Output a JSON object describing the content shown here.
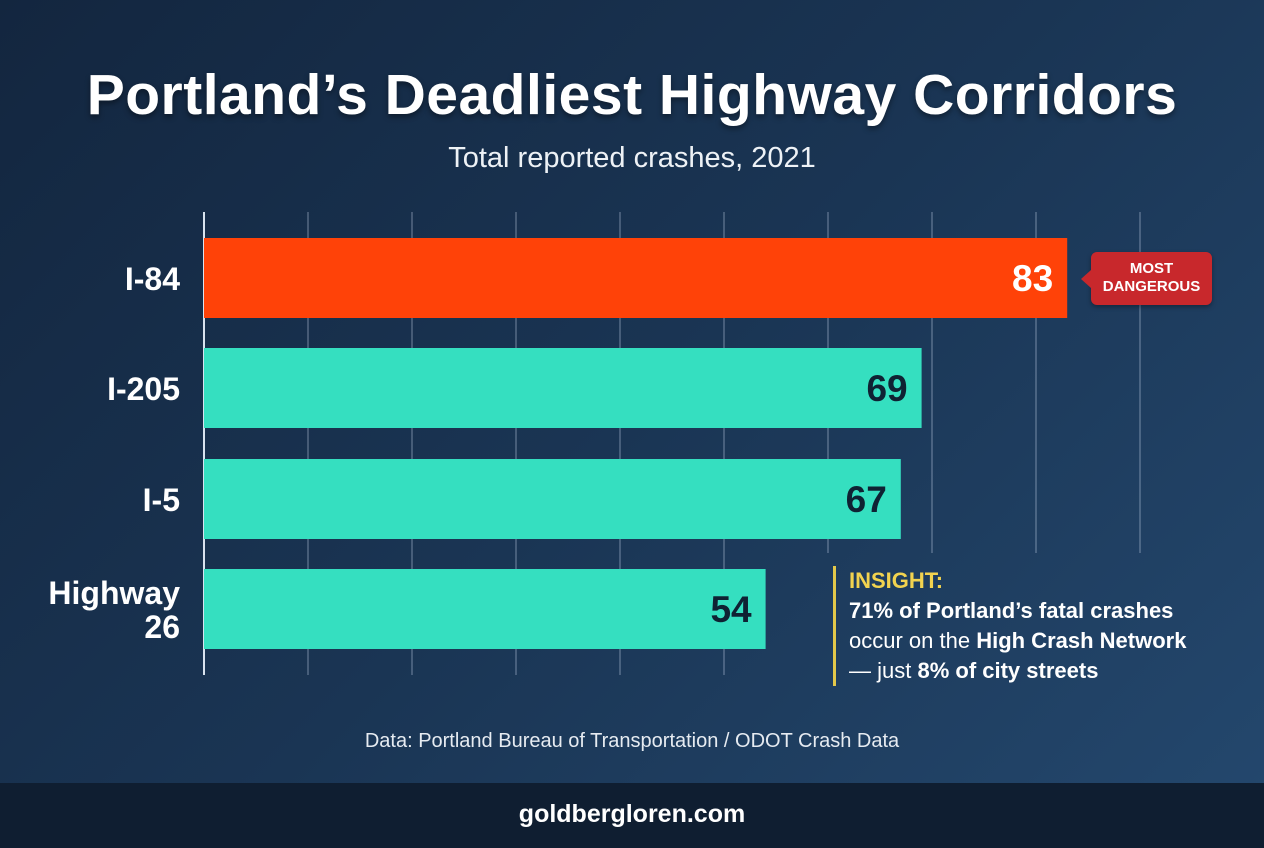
{
  "chart_data": {
    "type": "bar",
    "orientation": "horizontal",
    "title": "Portland’s Deadliest Highway Corridors",
    "subtitle": "Total reported crashes, 2021",
    "categories": [
      "I-84",
      "I-205",
      "I-5",
      "Highway 26"
    ],
    "values": [
      83,
      69,
      67,
      54
    ],
    "xlim": [
      0,
      90
    ],
    "grid": true,
    "grid_interval": 10,
    "colors": {
      "highlight": "#ff4208",
      "default": "#35dfc0",
      "highlight_label": "#ffffff",
      "default_label": "#0f2233"
    },
    "highlight_index": 0,
    "annotation": {
      "line1": "MOST",
      "line2": "DANGEROUS",
      "color": "#c8282c"
    }
  },
  "insight": {
    "heading": "INSIGHT:",
    "line1": "71% of Portland’s fatal crashes",
    "line2_pre": "occur on the ",
    "line2_bold": "High Crash Network",
    "line3_pre": "— just ",
    "line3_bold": "8% of city streets"
  },
  "source": "Data: Portland Bureau of Transportation / ODOT Crash Data",
  "footer": "goldbergloren.com"
}
